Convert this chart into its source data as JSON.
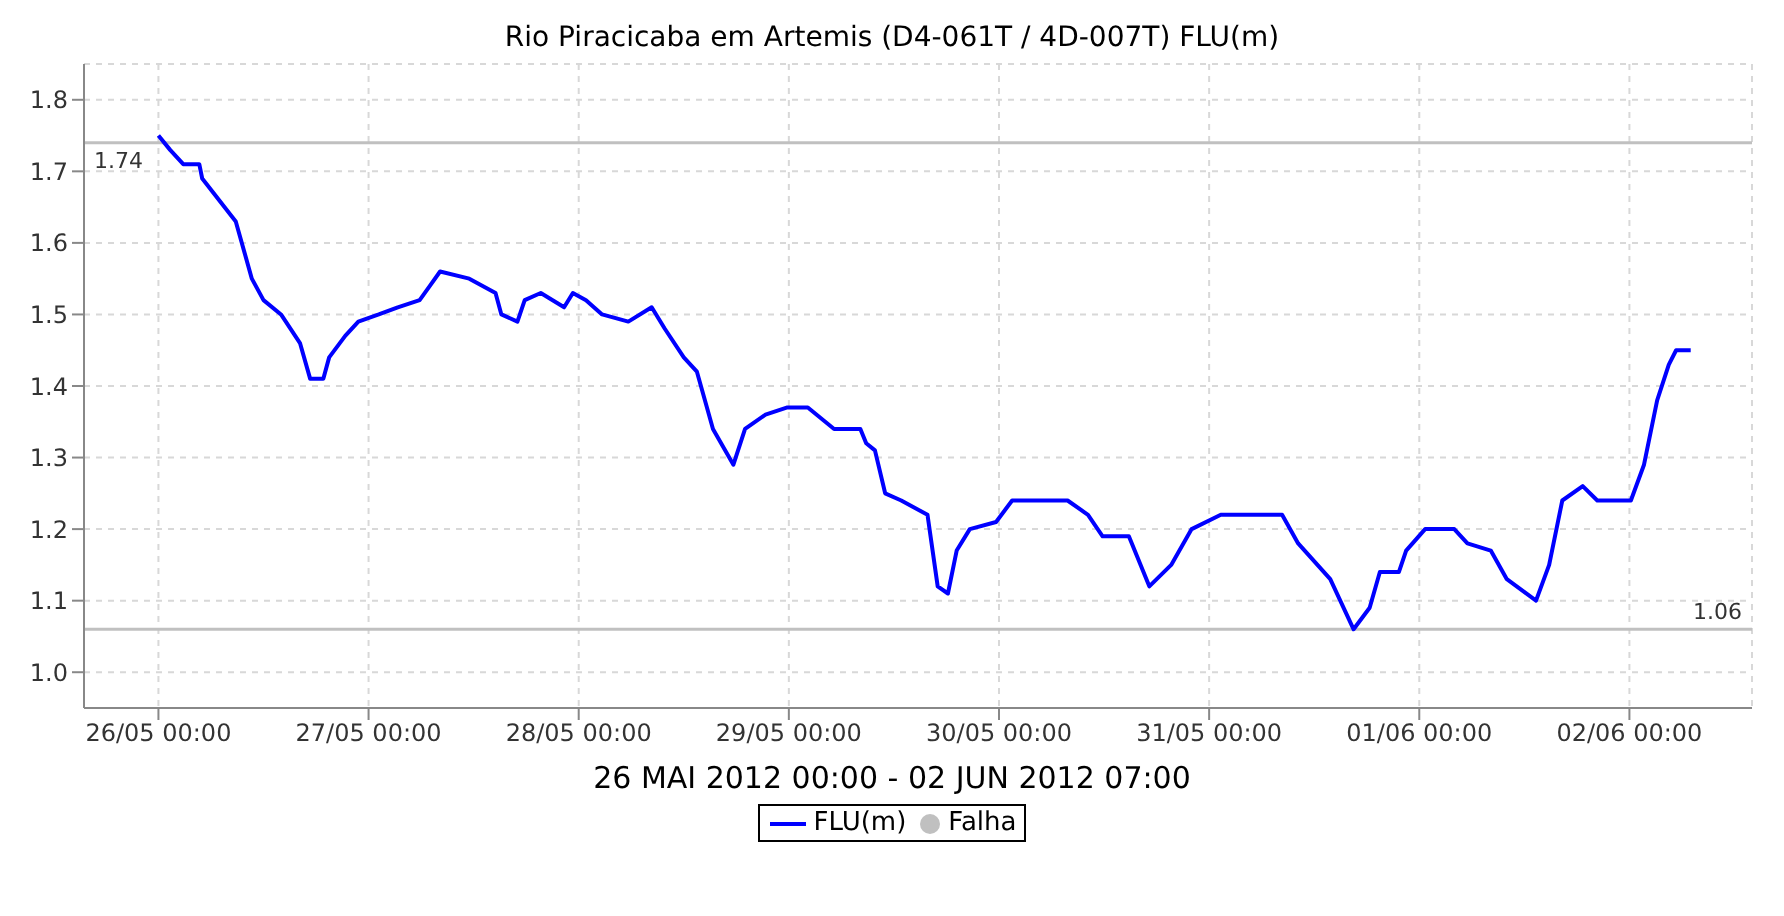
{
  "chart_data": {
    "type": "line",
    "title": "Rio Piracicaba em Artemis (D4-061T / 4D-007T) FLU(m)",
    "xlabel": "26 MAI 2012 00:00 - 02 JUN 2012 07:00",
    "xlim": [
      "2012-05-25T15:30",
      "2012-06-02T14:00"
    ],
    "xticks": [
      {
        "value": "2012-05-26T00:00",
        "label": "26/05 00:00"
      },
      {
        "value": "2012-05-27T00:00",
        "label": "27/05 00:00"
      },
      {
        "value": "2012-05-28T00:00",
        "label": "28/05 00:00"
      },
      {
        "value": "2012-05-29T00:00",
        "label": "29/05 00:00"
      },
      {
        "value": "2012-05-30T00:00",
        "label": "30/05 00:00"
      },
      {
        "value": "2012-05-31T00:00",
        "label": "31/05 00:00"
      },
      {
        "value": "2012-06-01T00:00",
        "label": "01/06 00:00"
      },
      {
        "value": "2012-06-02T00:00",
        "label": "02/06 00:00"
      }
    ],
    "ylim": [
      0.95,
      1.85
    ],
    "yticks": [
      {
        "value": 1,
        "label": "1.0"
      },
      1.1,
      1.2,
      1.3,
      1.4,
      1.5,
      1.6,
      1.7,
      1.8
    ],
    "grid": true,
    "legend": "bottom",
    "marker": "none",
    "line_style": "solid",
    "ref_lines": [
      {
        "axis": "y",
        "value": 1.74,
        "label": "1.74",
        "color": "#c0c0c0"
      },
      {
        "axis": "y",
        "value": 1.06,
        "label": "1.06",
        "color": "#c0c0c0"
      }
    ],
    "series": [
      {
        "name": "FLU(m)",
        "color": "#0000ff",
        "x": [
          "2012-05-26T00:00",
          "2012-05-26T01:20",
          "2012-05-26T02:50",
          "2012-05-26T04:40",
          "2012-05-26T05:00",
          "2012-05-26T08:50",
          "2012-05-26T10:40",
          "2012-05-26T12:00",
          "2012-05-26T14:00",
          "2012-05-26T16:10",
          "2012-05-26T17:20",
          "2012-05-26T18:50",
          "2012-05-26T19:30",
          "2012-05-26T21:20",
          "2012-05-26T22:50",
          "2012-05-27T01:10",
          "2012-05-27T03:20",
          "2012-05-27T05:50",
          "2012-05-27T07:00",
          "2012-05-27T08:10",
          "2012-05-27T11:30",
          "2012-05-27T14:30",
          "2012-05-27T15:10",
          "2012-05-27T17:00",
          "2012-05-27T17:50",
          "2012-05-27T19:40",
          "2012-05-27T22:20",
          "2012-05-27T23:20",
          "2012-05-28T00:50",
          "2012-05-28T02:40",
          "2012-05-28T05:40",
          "2012-05-28T08:20",
          "2012-05-28T09:50",
          "2012-05-28T12:00",
          "2012-05-28T13:30",
          "2012-05-28T15:20",
          "2012-05-28T17:40",
          "2012-05-28T19:00",
          "2012-05-28T21:20",
          "2012-05-28T23:50",
          "2012-05-29T02:10",
          "2012-05-29T05:10",
          "2012-05-29T08:10",
          "2012-05-29T08:50",
          "2012-05-29T09:50",
          "2012-05-29T11:00",
          "2012-05-29T12:50",
          "2012-05-29T15:50",
          "2012-05-29T17:00",
          "2012-05-29T18:10",
          "2012-05-29T19:10",
          "2012-05-29T20:40",
          "2012-05-29T23:40",
          "2012-05-30T01:30",
          "2012-05-30T07:50",
          "2012-05-30T10:10",
          "2012-05-30T11:50",
          "2012-05-30T14:50",
          "2012-05-30T17:10",
          "2012-05-30T19:40",
          "2012-05-30T22:00",
          "2012-05-31T01:20",
          "2012-05-31T05:20",
          "2012-05-31T08:20",
          "2012-05-31T10:10",
          "2012-05-31T13:50",
          "2012-05-31T16:30",
          "2012-05-31T18:20",
          "2012-05-31T19:30",
          "2012-05-31T21:40",
          "2012-05-31T22:30",
          "2012-06-01T00:40",
          "2012-06-01T04:00",
          "2012-06-01T05:30",
          "2012-06-01T08:10",
          "2012-06-01T10:00",
          "2012-06-01T13:20",
          "2012-06-01T14:50",
          "2012-06-01T16:20",
          "2012-06-01T18:40",
          "2012-06-01T20:20",
          "2012-06-02T00:10",
          "2012-06-02T01:40",
          "2012-06-02T03:10",
          "2012-06-02T04:30",
          "2012-06-02T05:20",
          "2012-06-02T07:00"
        ],
        "values": [
          1.75,
          1.73,
          1.71,
          1.71,
          1.69,
          1.63,
          1.55,
          1.52,
          1.5,
          1.46,
          1.41,
          1.41,
          1.44,
          1.47,
          1.49,
          1.5,
          1.51,
          1.52,
          1.54,
          1.56,
          1.55,
          1.53,
          1.5,
          1.49,
          1.52,
          1.53,
          1.51,
          1.53,
          1.52,
          1.5,
          1.49,
          1.51,
          1.48,
          1.44,
          1.42,
          1.34,
          1.29,
          1.34,
          1.36,
          1.37,
          1.37,
          1.34,
          1.34,
          1.32,
          1.31,
          1.25,
          1.24,
          1.22,
          1.12,
          1.11,
          1.17,
          1.2,
          1.21,
          1.24,
          1.24,
          1.22,
          1.19,
          1.19,
          1.12,
          1.15,
          1.2,
          1.22,
          1.22,
          1.22,
          1.18,
          1.13,
          1.06,
          1.09,
          1.14,
          1.14,
          1.17,
          1.2,
          1.2,
          1.18,
          1.17,
          1.13,
          1.1,
          1.15,
          1.24,
          1.26,
          1.24,
          1.24,
          1.29,
          1.38,
          1.43,
          1.45,
          1.45
        ]
      },
      {
        "name": "Falha",
        "type": "scatter",
        "color": "#c0c0c0"
      }
    ]
  }
}
